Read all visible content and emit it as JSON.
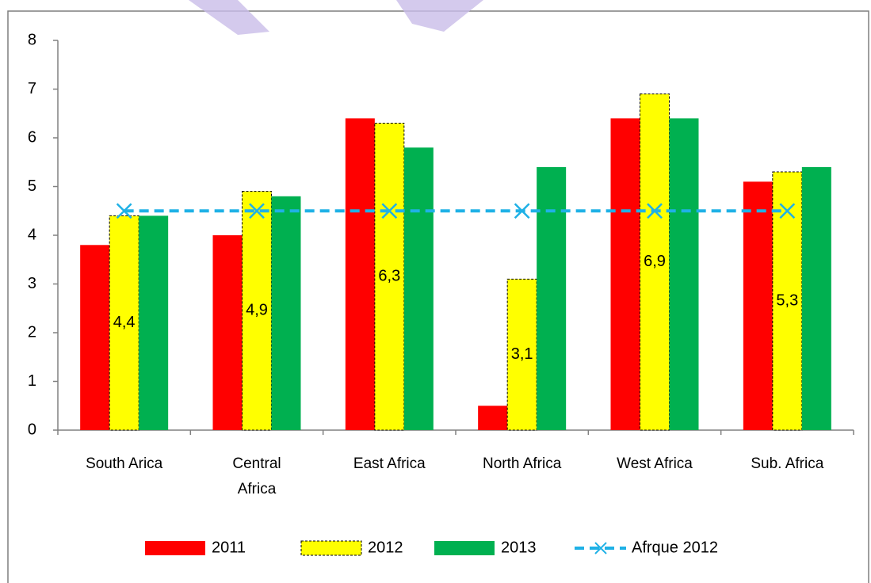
{
  "chart_data": {
    "type": "bar",
    "categories": [
      "South Arica",
      "Central Africa",
      "East Africa",
      "North Africa",
      "West Africa",
      "Sub. Africa"
    ],
    "series": [
      {
        "name": "2011",
        "color": "#ff0000",
        "values": [
          3.8,
          4.0,
          6.4,
          0.5,
          6.4,
          5.1
        ]
      },
      {
        "name": "2012",
        "color": "#ffff00",
        "values": [
          4.4,
          4.9,
          6.3,
          3.1,
          6.9,
          5.3
        ],
        "value_labels": [
          "4,4",
          "4,9",
          "6,3",
          "3,1",
          "6,9",
          "5,3"
        ]
      },
      {
        "name": "2013",
        "color": "#00b050",
        "values": [
          4.4,
          4.8,
          5.8,
          5.4,
          6.4,
          5.4
        ]
      },
      {
        "name": "Afrque 2012",
        "type": "line",
        "color": "#1fb1e6",
        "values": [
          4.5,
          4.5,
          4.5,
          4.5,
          4.5,
          4.5
        ]
      }
    ],
    "ylim": [
      0,
      8
    ],
    "yticks": [
      0,
      1,
      2,
      3,
      4,
      5,
      6,
      7,
      8
    ],
    "legend": "bottom"
  }
}
